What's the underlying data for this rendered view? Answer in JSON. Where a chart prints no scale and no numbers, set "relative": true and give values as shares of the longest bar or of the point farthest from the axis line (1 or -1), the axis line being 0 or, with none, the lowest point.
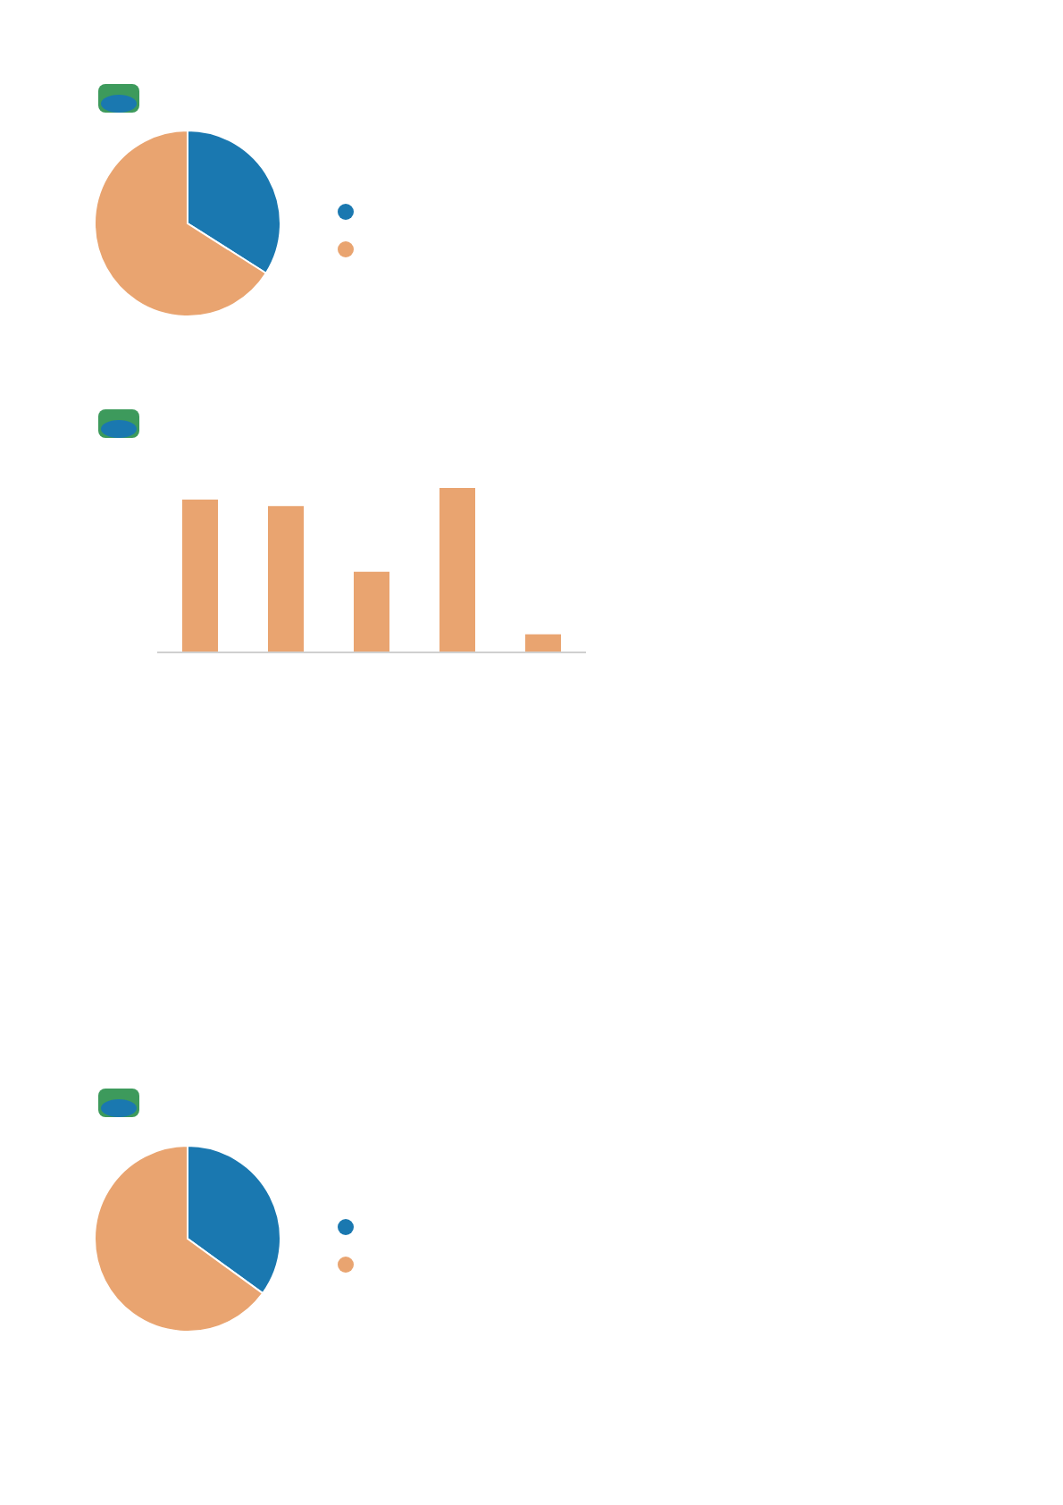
{
  "chart_data": [
    {
      "type": "pie",
      "categories": [
        null,
        null
      ],
      "values": [
        34,
        66
      ],
      "colors": [
        "#1a78b0",
        "#e9a470"
      ]
    },
    {
      "type": "bar",
      "relative": true,
      "categories": [
        null,
        null,
        null,
        null,
        null
      ],
      "values": [
        0.93,
        0.89,
        0.49,
        1,
        0.11
      ],
      "color": "#e9a470"
    },
    {
      "type": "pie",
      "categories": [
        null,
        null
      ],
      "values": [
        35,
        65
      ],
      "colors": [
        "#1a78b0",
        "#e9a470"
      ]
    }
  ]
}
